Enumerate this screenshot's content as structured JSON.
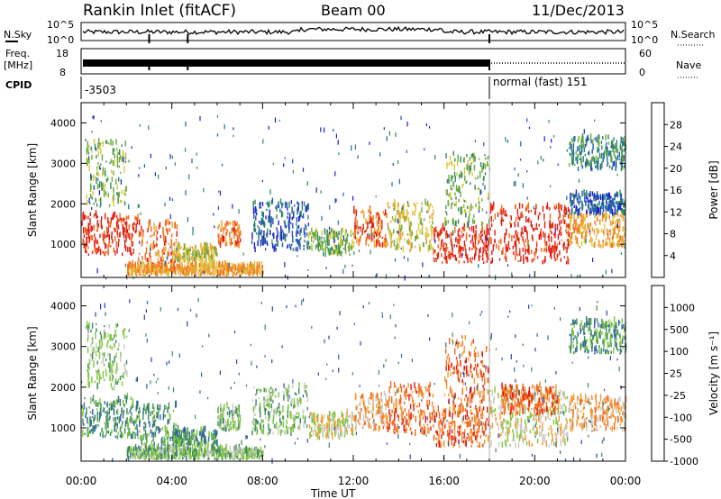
{
  "header": {
    "title": "Rankin Inlet (fitACF)",
    "beam": "Beam 00",
    "date": "11/Dec/2013"
  },
  "params_panel": {
    "nsky_label": "N.Sky",
    "nsearch_label": "N.Search",
    "noise_ticks_left": [
      "10^5",
      "10^0"
    ],
    "noise_ticks_right": [
      "10^5",
      "10^0"
    ],
    "freq_label": "Freq.",
    "freq_unit": "[MHz]",
    "freq_ticks": [
      "18",
      "8"
    ],
    "nave_label": "Nave",
    "nave_ticks": [
      "60",
      "0"
    ],
    "cpid_label": "CPID",
    "cpid_value_1": "-3503",
    "cpid_value_2": "normal (fast) 151"
  },
  "x_axis": {
    "ticks": [
      "00:00",
      "04:00",
      "08:00",
      "12:00",
      "16:00",
      "20:00",
      "00:00"
    ],
    "label": "Time UT"
  },
  "chart_data": [
    {
      "type": "heatmap",
      "name": "power-panel",
      "ylabel": "Slant Range [km]",
      "yticks": [
        "1000",
        "2000",
        "3000",
        "4000"
      ],
      "ylim": [
        180,
        4500
      ],
      "xlim_hours": [
        0,
        24
      ],
      "colorbar": {
        "label": "Power [dB]",
        "ticks": [
          "4",
          "8",
          "12",
          "16",
          "20",
          "24",
          "28"
        ],
        "colors": [
          "#1d1dd4",
          "#1f5fb0",
          "#2e8a5a",
          "#6aa83c",
          "#d8c83a",
          "#f0a030",
          "#f26a1a",
          "#e01a10"
        ]
      },
      "echo_regions": [
        {
          "t0": 0.0,
          "t1": 2.5,
          "r0": 700,
          "r1": 1700,
          "level": 7
        },
        {
          "t0": 0.2,
          "t1": 2.0,
          "r0": 1900,
          "r1": 3500,
          "level": 3
        },
        {
          "t0": 2.5,
          "t1": 4.2,
          "r0": 300,
          "r1": 1500,
          "level": 6
        },
        {
          "t0": 4.0,
          "t1": 6.0,
          "r0": 500,
          "r1": 900,
          "level": 4
        },
        {
          "t0": 6.0,
          "t1": 7.0,
          "r0": 900,
          "r1": 1500,
          "level": 6
        },
        {
          "t0": 7.5,
          "t1": 10.0,
          "r0": 800,
          "r1": 2000,
          "level": 1
        },
        {
          "t0": 10.0,
          "t1": 12.0,
          "r0": 700,
          "r1": 1300,
          "level": 3
        },
        {
          "t0": 12.0,
          "t1": 13.5,
          "r0": 900,
          "r1": 1800,
          "level": 6
        },
        {
          "t0": 13.5,
          "t1": 15.5,
          "r0": 800,
          "r1": 2000,
          "level": 4
        },
        {
          "t0": 15.5,
          "t1": 18.0,
          "r0": 500,
          "r1": 1400,
          "level": 7
        },
        {
          "t0": 16.0,
          "t1": 18.0,
          "r0": 1400,
          "r1": 3200,
          "level": 3
        },
        {
          "t0": 18.0,
          "t1": 21.5,
          "r0": 500,
          "r1": 1900,
          "level": 7
        },
        {
          "t0": 21.5,
          "t1": 24.0,
          "r0": 900,
          "r1": 1700,
          "level": 5
        },
        {
          "t0": 21.5,
          "t1": 24.0,
          "r0": 1700,
          "r1": 2200,
          "level": 1
        },
        {
          "t0": 21.5,
          "t1": 24.0,
          "r0": 2800,
          "r1": 3600,
          "level": 2
        },
        {
          "t0": 2.0,
          "t1": 8.0,
          "r0": 200,
          "r1": 450,
          "level": 5
        }
      ]
    },
    {
      "type": "heatmap",
      "name": "velocity-panel",
      "ylabel": "Slant Range [km]",
      "yticks": [
        "1000",
        "2000",
        "3000",
        "4000"
      ],
      "ylim": [
        180,
        4500
      ],
      "xlim_hours": [
        0,
        24
      ],
      "colorbar": {
        "label": "Velocity [m s⁻¹]",
        "ticks": [
          "1000",
          "500",
          "100",
          "25",
          "-25",
          "-100",
          "-500",
          "-1000"
        ],
        "colors": [
          "#2b3fb0",
          "#2f6a9a",
          "#3f8a5a",
          "#7cc63a",
          "#c8c8c0",
          "#f59a30",
          "#f26a1a",
          "#e01a10"
        ]
      },
      "echo_regions": [
        {
          "t0": 0.0,
          "t1": 2.5,
          "r0": 700,
          "r1": 1700,
          "level": 2
        },
        {
          "t0": 0.2,
          "t1": 2.0,
          "r0": 1900,
          "r1": 3500,
          "level": 3
        },
        {
          "t0": 2.5,
          "t1": 4.2,
          "r0": 300,
          "r1": 1500,
          "level": 2
        },
        {
          "t0": 4.0,
          "t1": 6.0,
          "r0": 500,
          "r1": 900,
          "level": 2
        },
        {
          "t0": 6.0,
          "t1": 7.0,
          "r0": 900,
          "r1": 1500,
          "level": 3
        },
        {
          "t0": 7.5,
          "t1": 10.0,
          "r0": 800,
          "r1": 2000,
          "level": 3
        },
        {
          "t0": 10.0,
          "t1": 12.0,
          "r0": 700,
          "r1": 1300,
          "level": 4
        },
        {
          "t0": 12.0,
          "t1": 13.5,
          "r0": 900,
          "r1": 1800,
          "level": 5
        },
        {
          "t0": 13.5,
          "t1": 15.5,
          "r0": 800,
          "r1": 2000,
          "level": 6
        },
        {
          "t0": 15.5,
          "t1": 18.0,
          "r0": 500,
          "r1": 1400,
          "level": 6
        },
        {
          "t0": 16.0,
          "t1": 18.0,
          "r0": 1400,
          "r1": 3200,
          "level": 6
        },
        {
          "t0": 18.0,
          "t1": 21.5,
          "r0": 500,
          "r1": 1900,
          "level": 4
        },
        {
          "t0": 18.5,
          "t1": 21.0,
          "r0": 1300,
          "r1": 2000,
          "level": 6
        },
        {
          "t0": 21.5,
          "t1": 24.0,
          "r0": 900,
          "r1": 1700,
          "level": 5
        },
        {
          "t0": 21.5,
          "t1": 24.0,
          "r0": 2800,
          "r1": 3600,
          "level": 2
        },
        {
          "t0": 2.0,
          "t1": 8.0,
          "r0": 200,
          "r1": 450,
          "level": 3
        }
      ]
    }
  ]
}
